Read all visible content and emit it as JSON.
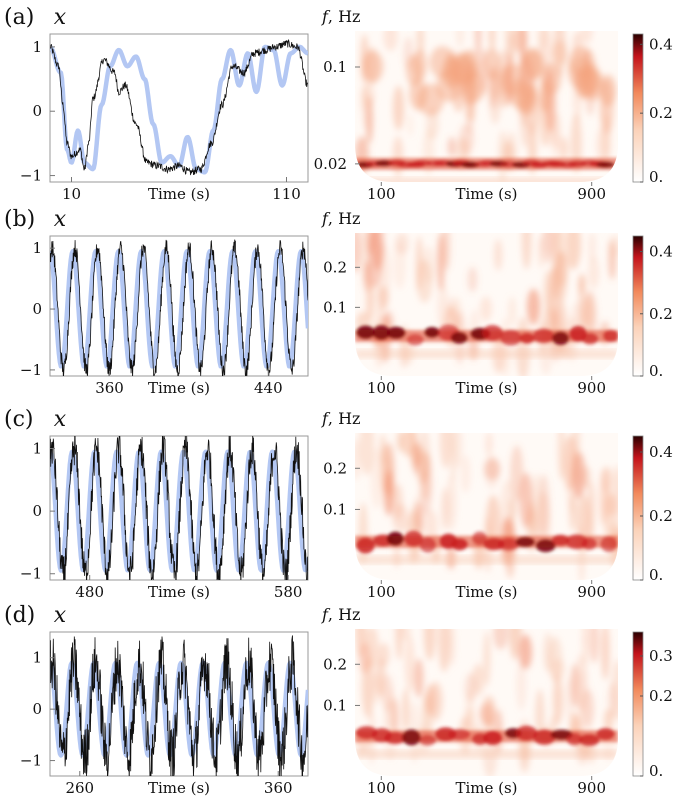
{
  "colors": {
    "model_curve": "#b3c7f3",
    "data_trace": "#111111",
    "heat_low": "#ffffff",
    "heat_mid": "#f28a5c",
    "heat_high": "#c3131b",
    "heat_max": "#2a0000"
  },
  "panels": [
    {
      "label": "(a)",
      "chart_data": [
        {
          "type": "line",
          "ylabel": "x",
          "xlabel": "Time (s)",
          "xlim": [
            0,
            120
          ],
          "ylim": [
            -1.1,
            1.2
          ],
          "xticks": [
            "10",
            "110"
          ],
          "yticks": [
            "1",
            "0",
            "−1"
          ],
          "series": [
            {
              "type": "line",
              "x": [
                0,
                4,
                6,
                8,
                10,
                14,
                16,
                18,
                20,
                25,
                30,
                32,
                35,
                40,
                45,
                50,
                55,
                60,
                65,
                70,
                75,
                80,
                85,
                90,
                95,
                100,
                105,
                110,
                115,
                120
              ],
              "y": [
                1.0,
                0.7,
                0.1,
                -0.5,
                -0.7,
                -0.6,
                -0.9,
                -0.5,
                0.2,
                0.8,
                0.6,
                0.3,
                0.4,
                -0.2,
                -0.8,
                -0.85,
                -0.9,
                -0.85,
                -0.95,
                -0.9,
                -0.5,
                0.1,
                0.7,
                0.6,
                0.9,
                0.95,
                1.0,
                1.05,
                1.0,
                0.4
              ]
            },
            {
              "type": "line",
              "x": [
                0,
                5,
                8,
                10,
                13,
                16,
                20,
                24,
                28,
                32,
                36,
                40,
                44,
                48,
                52,
                56,
                60,
                64,
                68,
                72,
                76,
                80,
                84,
                88,
                92,
                96,
                100,
                104,
                108,
                112,
                116,
                120
              ],
              "y": [
                1.0,
                0.6,
                -0.6,
                -0.8,
                -0.3,
                -0.8,
                -0.9,
                0.1,
                0.7,
                0.95,
                0.7,
                0.85,
                0.5,
                -0.2,
                -0.8,
                -0.7,
                -0.85,
                -0.4,
                -0.9,
                -0.95,
                -0.3,
                0.5,
                0.95,
                0.4,
                0.9,
                0.3,
                1.0,
                0.95,
                0.4,
                0.9,
                1.0,
                0.9
              ]
            }
          ]
        },
        {
          "type": "heatmap",
          "ylabel": "f, Hz",
          "xlabel": "Time (s)",
          "xlim": [
            0,
            1000
          ],
          "xticks": [
            "100",
            "900"
          ],
          "yticks": [
            "0.1",
            "0.02"
          ],
          "ridges": [
            0.88
          ],
          "colorbar": {
            "ticks": [
              "0.4",
              "0.2",
              "0."
            ],
            "max": 0.43
          }
        }
      ]
    },
    {
      "label": "(b)",
      "chart_data": [
        {
          "type": "line",
          "ylabel": "x",
          "xlabel": "Time (s)",
          "xlim": [
            330,
            460
          ],
          "ylim": [
            -1.1,
            1.2
          ],
          "xticks": [
            "360",
            "440"
          ],
          "yticks": [
            "1",
            "0",
            "−1"
          ],
          "series": [
            {
              "type": "line",
              "period": 11.5,
              "amplitude": 0.95
            },
            {
              "type": "line",
              "period": 11.5,
              "amplitude": 1.0,
              "noise": 0.15
            }
          ]
        },
        {
          "type": "heatmap",
          "ylabel": "f, Hz",
          "xlabel": "Time (s)",
          "xlim": [
            0,
            1000
          ],
          "xticks": [
            "100",
            "900"
          ],
          "yticks": [
            "0.2",
            "0.1"
          ],
          "ridges": [
            0.72
          ],
          "colorbar": {
            "ticks": [
              "0.4",
              "0.2",
              "0."
            ],
            "max": 0.45
          }
        }
      ]
    },
    {
      "label": "(c)",
      "chart_data": [
        {
          "type": "line",
          "ylabel": "x",
          "xlabel": "Time (s)",
          "xlim": [
            460,
            590
          ],
          "ylim": [
            -1.1,
            1.2
          ],
          "xticks": [
            "480",
            "580"
          ],
          "yticks": [
            "1",
            "0",
            "−1"
          ],
          "series": [
            {
              "type": "line",
              "period": 11.2,
              "amplitude": 0.95
            },
            {
              "type": "line",
              "period": 11.2,
              "amplitude": 1.0,
              "noise": 0.28
            }
          ]
        },
        {
          "type": "heatmap",
          "ylabel": "f, Hz",
          "xlabel": "Time (s)",
          "xlim": [
            0,
            1000
          ],
          "xticks": [
            "100",
            "900"
          ],
          "yticks": [
            "0.2",
            "0.1"
          ],
          "ridges": [
            0.74
          ],
          "colorbar": {
            "ticks": [
              "0.4",
              "0.2",
              "0."
            ],
            "max": 0.45
          }
        }
      ]
    },
    {
      "label": "(d)",
      "chart_data": [
        {
          "type": "line",
          "ylabel": "x",
          "xlabel": "Time (s)",
          "xlim": [
            245,
            375
          ],
          "ylim": [
            -1.3,
            1.5
          ],
          "xticks": [
            "260",
            "360"
          ],
          "yticks": [
            "1",
            "0",
            "−1"
          ],
          "series": [
            {
              "type": "line",
              "period": 11.0,
              "amplitude": 0.9
            },
            {
              "type": "line",
              "period": 11.0,
              "amplitude": 0.9,
              "noise": 0.55
            }
          ]
        },
        {
          "type": "heatmap",
          "ylabel": "f, Hz",
          "xlabel": "Time (s)",
          "xlim": [
            0,
            1000
          ],
          "xticks": [
            "100",
            "900"
          ],
          "yticks": [
            "0.2",
            "0.1"
          ],
          "ridges": [
            0.73
          ],
          "colorbar": {
            "ticks": [
              "0.3",
              "0.2",
              "0."
            ],
            "max": 0.36
          }
        }
      ]
    }
  ]
}
